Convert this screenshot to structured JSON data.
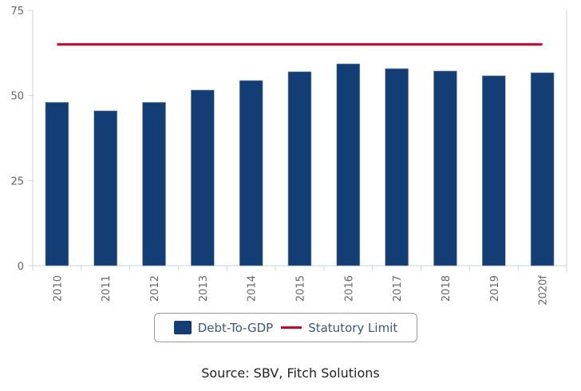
{
  "chart_data": {
    "type": "bar",
    "title": "",
    "xlabel": "",
    "ylabel": "",
    "categories": [
      "2010",
      "2011",
      "2012",
      "2013",
      "2014",
      "2015",
      "2016",
      "2017",
      "2018",
      "2019",
      "2020f"
    ],
    "series": [
      {
        "name": "Debt-To-GDP",
        "type": "bar",
        "color": "#133d75",
        "values": [
          48.0,
          45.5,
          48.0,
          51.6,
          54.4,
          57.0,
          59.3,
          57.9,
          57.2,
          55.8,
          56.7
        ]
      },
      {
        "name": "Statutory Limit",
        "type": "line",
        "color": "#d8002b",
        "values": [
          65,
          65,
          65,
          65,
          65,
          65,
          65,
          65,
          65,
          65,
          65
        ]
      }
    ],
    "ylim": [
      0,
      75
    ],
    "yticks": [
      0,
      25,
      50,
      75
    ],
    "grid": false,
    "legend": "bottom-center"
  },
  "legend": {
    "items": [
      {
        "label": "Debt-To-GDP"
      },
      {
        "label": "Statutory Limit"
      }
    ]
  },
  "source": "Source: SBV, Fitch Solutions"
}
